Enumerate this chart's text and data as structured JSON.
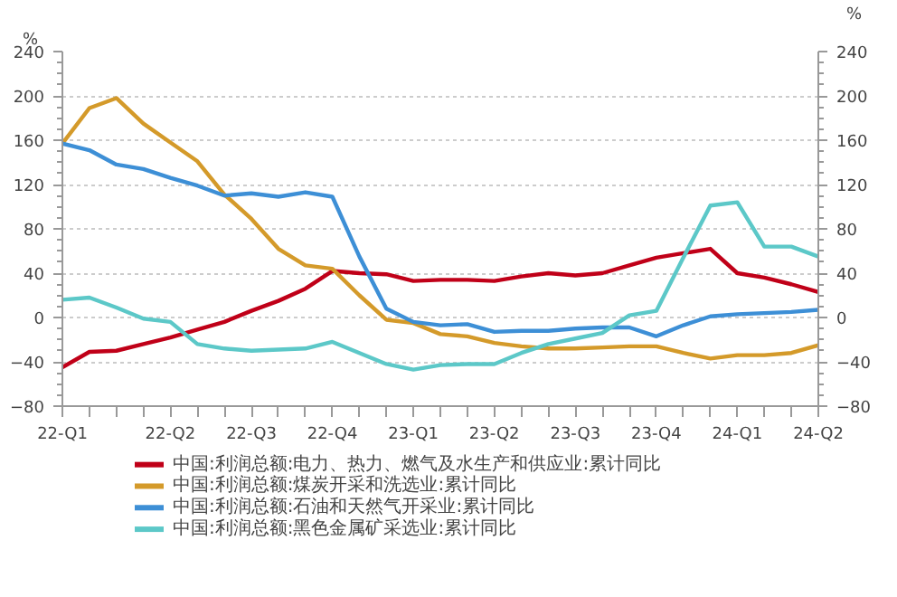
{
  "chart_data": {
    "type": "line",
    "ylabel": "%",
    "y2label": "%",
    "categories": [
      "22-Q1",
      null,
      null,
      null,
      "22-Q2",
      null,
      null,
      "22-Q3",
      null,
      null,
      "22-Q4",
      null,
      null,
      "23-Q1",
      null,
      null,
      "23-Q2",
      null,
      null,
      "23-Q3",
      null,
      null,
      "23-Q4",
      null,
      null,
      "24-Q1",
      null,
      null,
      "24-Q2"
    ],
    "series": [
      {
        "name": "中国:利润总额:电力、热力、燃气及水生产和供应业:累计同比",
        "color": "#c00018",
        "values": [
          -45,
          -31,
          -30,
          -24,
          -18,
          -11,
          -4,
          6,
          15,
          26,
          42,
          40,
          39,
          33,
          34,
          34,
          33,
          37,
          40,
          38,
          40,
          47,
          54,
          58,
          62,
          40,
          36,
          30,
          23
        ]
      },
      {
        "name": "中国:利润总额:煤炭开采和洗选业:累计同比",
        "color": "#d49a2a",
        "values": [
          157,
          189,
          198,
          175,
          158,
          141,
          111,
          89,
          62,
          47,
          44,
          20,
          -2,
          -5,
          -15,
          -17,
          -23,
          -26,
          -28,
          -28,
          -27,
          -26,
          -26,
          -32,
          -37,
          -34,
          -34,
          -32,
          -25
        ]
      },
      {
        "name": "中国:利润总额:石油和天然气开采业:累计同比",
        "color": "#3d8fd6",
        "values": [
          157,
          151,
          138,
          134,
          126,
          119,
          110,
          112,
          109,
          113,
          109,
          55,
          8,
          -4,
          -7,
          -6,
          -13,
          -12,
          -12,
          -10,
          -9,
          -9,
          -17,
          -7,
          1,
          3,
          4,
          5,
          7
        ]
      },
      {
        "name": "中国:利润总额:黑色金属矿采选业:累计同比",
        "color": "#5cc8c8",
        "values": [
          16,
          18,
          9,
          -1,
          -4,
          -24,
          -28,
          -30,
          -29,
          -28,
          -22,
          -32,
          -42,
          -47,
          -43,
          -42,
          -42,
          -32,
          -24,
          -19,
          -14,
          2,
          6,
          54,
          101,
          104,
          64,
          64,
          55
        ]
      }
    ],
    "ylim": [
      -80,
      240
    ],
    "yticks": [
      -80,
      -40,
      0,
      40,
      80,
      120,
      160,
      200,
      240
    ],
    "y2lim": [
      -80,
      240
    ],
    "y2ticks": [
      -80,
      -40,
      0,
      40,
      80,
      120,
      160,
      200,
      240
    ],
    "grid": "y",
    "legend": "bottom",
    "line_style": "solid",
    "marker": "none"
  }
}
